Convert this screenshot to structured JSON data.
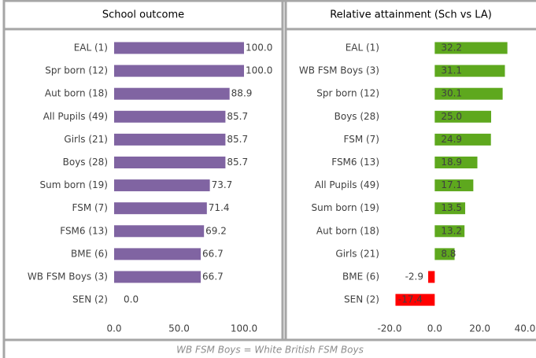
{
  "chart_data": [
    {
      "type": "bar",
      "orientation": "horizontal",
      "title": "School outcome",
      "color": "#8064a2",
      "categories": [
        "EAL (1)",
        "Spr born (12)",
        "Aut born (18)",
        "All Pupils (49)",
        "Girls (21)",
        "Boys (28)",
        "Sum born (19)",
        "FSM (7)",
        "FSM6 (13)",
        "BME (6)",
        "WB FSM Boys (3)",
        "SEN (2)"
      ],
      "values": [
        100,
        100,
        88.9,
        85.7,
        85.7,
        85.7,
        73.7,
        71.4,
        69.2,
        66.7,
        66.7,
        0
      ],
      "value_labels": [
        "100.0",
        "100.0",
        "88.9",
        "85.7",
        "85.7",
        "85.7",
        "73.7",
        "71.4",
        "69.2",
        "66.7",
        "66.7",
        "0.0"
      ],
      "xlim": [
        0,
        100
      ],
      "xticks": [
        {
          "value": 0,
          "label": "0.0"
        },
        {
          "value": 50,
          "label": "50.0"
        },
        {
          "value": 100,
          "label": "100.0"
        }
      ]
    },
    {
      "type": "bar",
      "orientation": "horizontal",
      "title": "Relative attainment (Sch vs LA)",
      "color": "#5ea81e",
      "negative_color": "#ff0000",
      "categories": [
        "EAL (1)",
        "WB FSM Boys (3)",
        "Spr born (12)",
        "Boys (28)",
        "FSM (7)",
        "FSM6 (13)",
        "All Pupils (49)",
        "Sum born (19)",
        "Aut born (18)",
        "Girls (21)",
        "BME (6)",
        "SEN (2)"
      ],
      "values": [
        32.2,
        31.1,
        30.1,
        25.0,
        24.9,
        18.9,
        17.1,
        13.5,
        13.2,
        8.8,
        -2.9,
        -17.4
      ],
      "value_labels": [
        "32.2",
        "31.1",
        "30.1",
        "25.0",
        "24.9",
        "18.9",
        "17.1",
        "13.5",
        "13.2",
        "8.8",
        "-2.9",
        "-17.4"
      ],
      "xlim": [
        -20,
        40
      ],
      "xticks": [
        {
          "value": -20,
          "label": "-20.0"
        },
        {
          "value": 0,
          "label": "0.0"
        },
        {
          "value": 20,
          "label": "20.0"
        },
        {
          "value": 40,
          "label": "40.0"
        }
      ]
    }
  ],
  "note": "WB FSM Boys = White British FSM Boys"
}
